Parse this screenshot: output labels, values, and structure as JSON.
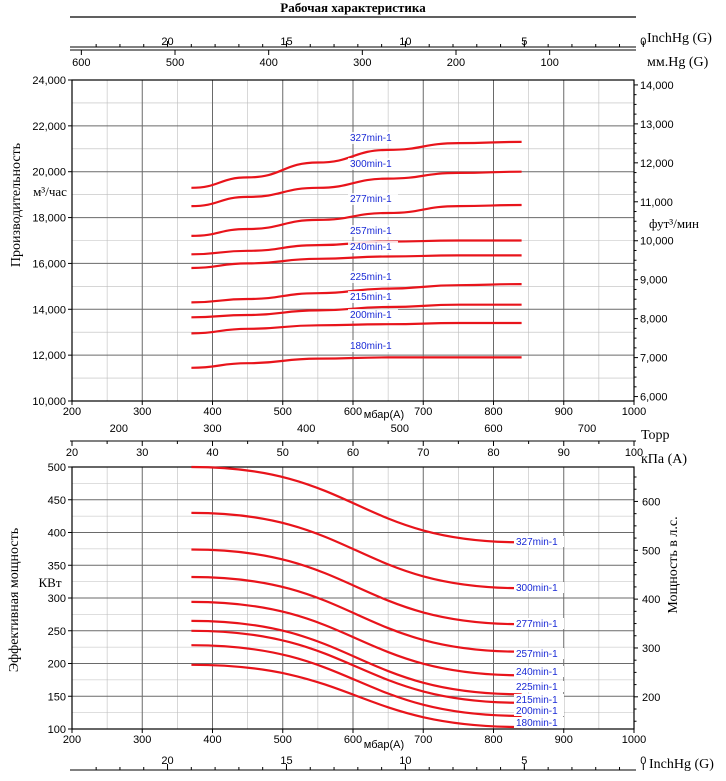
{
  "title": "Рабочая характеристика",
  "colors": {
    "curve": "#e8141b",
    "label": "#1a2ad6",
    "grid_major": "#6a6a6a",
    "grid_minor": "#bdbdbd",
    "axis": "#000000"
  },
  "chart_data": [
    {
      "type": "line",
      "name": "capacity",
      "ylabel": "Производительность",
      "yunit": "м³/час",
      "ylabel_right_unit": "фут³/мин",
      "xlabel_bottom": "мбар(A)",
      "xlim": [
        200,
        1000
      ],
      "ylim": [
        10000,
        24000
      ],
      "x_ticks": [
        "200",
        "300",
        "400",
        "500",
        "600",
        "700",
        "800",
        "900",
        "1000"
      ],
      "y_ticks": [
        "10,000",
        "12,000",
        "14,000",
        "16,000",
        "18,000",
        "20,000",
        "22,000",
        "24,000"
      ],
      "y_right_ticks": [
        "6,000",
        "7,000",
        "8,000",
        "9,000",
        "10,000",
        "11,000",
        "12,000",
        "13,000",
        "14,000"
      ],
      "top_axes": [
        {
          "unit": "InchHg (G)",
          "ticks": [
            "20",
            "15",
            "10",
            "5",
            "0"
          ]
        },
        {
          "unit": "мм.Hg (G)",
          "ticks": [
            "600",
            "500",
            "400",
            "300",
            "200",
            "100"
          ]
        }
      ],
      "bottom_axes": [
        {
          "unit": "Торр",
          "ticks": [
            "200",
            "300",
            "400",
            "500",
            "600",
            "700"
          ]
        },
        {
          "unit": "кПа (A)",
          "ticks": [
            "20",
            "30",
            "40",
            "50",
            "60",
            "70",
            "80",
            "90",
            "100"
          ]
        }
      ],
      "series": [
        {
          "name": "327min-1",
          "x": [
            370,
            450,
            550,
            650,
            750,
            840
          ],
          "y": [
            19300,
            19750,
            20400,
            20950,
            21250,
            21300
          ]
        },
        {
          "name": "300min-1",
          "x": [
            370,
            450,
            550,
            650,
            750,
            840
          ],
          "y": [
            18500,
            18900,
            19300,
            19700,
            19950,
            20000
          ]
        },
        {
          "name": "277min-1",
          "x": [
            370,
            450,
            550,
            650,
            750,
            840
          ],
          "y": [
            17200,
            17500,
            17900,
            18200,
            18500,
            18550
          ]
        },
        {
          "name": "257min-1",
          "x": [
            370,
            450,
            550,
            650,
            750,
            840
          ],
          "y": [
            16400,
            16550,
            16800,
            16950,
            17000,
            17000
          ]
        },
        {
          "name": "240min-1",
          "x": [
            370,
            450,
            550,
            650,
            750,
            840
          ],
          "y": [
            15800,
            16000,
            16200,
            16300,
            16350,
            16350
          ]
        },
        {
          "name": "225min-1",
          "x": [
            370,
            450,
            550,
            650,
            750,
            840
          ],
          "y": [
            14300,
            14450,
            14700,
            14900,
            15050,
            15100
          ]
        },
        {
          "name": "215min-1",
          "x": [
            370,
            450,
            550,
            650,
            750,
            840
          ],
          "y": [
            13650,
            13750,
            13950,
            14100,
            14200,
            14200
          ]
        },
        {
          "name": "200min-1",
          "x": [
            370,
            450,
            550,
            650,
            750,
            840
          ],
          "y": [
            12950,
            13150,
            13300,
            13350,
            13400,
            13400
          ]
        },
        {
          "name": "180min-1",
          "x": [
            370,
            450,
            550,
            650,
            750,
            840
          ],
          "y": [
            11450,
            11650,
            11850,
            11900,
            11900,
            11900
          ]
        }
      ]
    },
    {
      "type": "line",
      "name": "power",
      "ylabel": "Эффективная мощность",
      "yunit": "КВт",
      "ylabel_right": "Мощность в л.с.",
      "xlabel_bottom": "мбар(A)",
      "xlim": [
        200,
        1000
      ],
      "ylim": [
        100,
        500
      ],
      "x_ticks": [
        "200",
        "300",
        "400",
        "500",
        "600",
        "700",
        "800",
        "900",
        "1000"
      ],
      "y_ticks": [
        "100",
        "150",
        "200",
        "250",
        "300",
        "350",
        "400",
        "450",
        "500"
      ],
      "y_right_ticks": [
        "200",
        "300",
        "400",
        "500",
        "600"
      ],
      "bottom_axes": [
        {
          "unit": "InchHg (G)",
          "ticks": [
            "20",
            "15",
            "10",
            "5",
            "0"
          ]
        }
      ],
      "series": [
        {
          "name": "327min-1",
          "x": [
            370,
            840
          ],
          "y": [
            500,
            385
          ]
        },
        {
          "name": "300min-1",
          "x": [
            370,
            840
          ],
          "y": [
            430,
            315
          ]
        },
        {
          "name": "277min-1",
          "x": [
            370,
            840
          ],
          "y": [
            374,
            260
          ]
        },
        {
          "name": "257min-1",
          "x": [
            370,
            840
          ],
          "y": [
            332,
            218
          ]
        },
        {
          "name": "240min-1",
          "x": [
            370,
            840
          ],
          "y": [
            294,
            182
          ]
        },
        {
          "name": "225min-1",
          "x": [
            370,
            840
          ],
          "y": [
            265,
            153
          ]
        },
        {
          "name": "215min-1",
          "x": [
            370,
            840
          ],
          "y": [
            250,
            140
          ]
        },
        {
          "name": "200min-1",
          "x": [
            370,
            840
          ],
          "y": [
            228,
            120
          ]
        },
        {
          "name": "180min-1",
          "x": [
            370,
            840
          ],
          "y": [
            198,
            103
          ]
        }
      ]
    }
  ]
}
